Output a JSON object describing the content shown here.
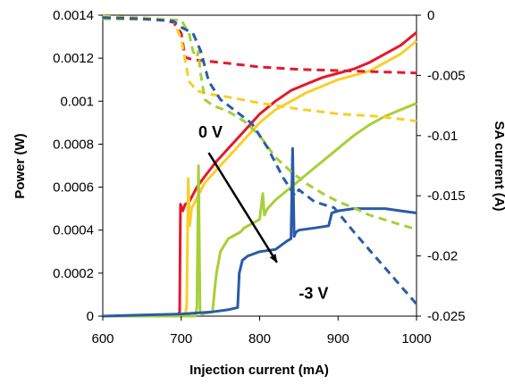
{
  "chart_data": {
    "type": "line",
    "title": "",
    "xlabel": "Injection current (mA)",
    "ylabel": "Power (W)",
    "y2label": "SA current (A)",
    "xlim": [
      600,
      1000
    ],
    "ylim": [
      0,
      0.0014
    ],
    "y2lim": [
      -0.025,
      0
    ],
    "grid": false,
    "legend": "none",
    "x_ticks": [
      "600",
      "700",
      "800",
      "900",
      "1000"
    ],
    "y_ticks": [
      "0",
      "0.0002",
      "0.0004",
      "0.0006",
      "0.0008",
      "0.001",
      "0.0012",
      "0.0014"
    ],
    "y2_ticks": [
      "0",
      "-0.005",
      "-0.01",
      "-0.015",
      "-0.02",
      "-0.025"
    ],
    "annotations": [
      {
        "text": "0 V",
        "x": 722,
        "y": 0.00083
      },
      {
        "text": "-3 V",
        "x": 850,
        "y": 8e-05
      }
    ],
    "arrow": {
      "from": [
        735,
        0.00076
      ],
      "to": [
        822,
        0.00025
      ]
    },
    "colors": {
      "red": "#e3192b",
      "orange": "#f8cf2a",
      "green": "#a8cf38",
      "blue": "#2a5ba8"
    },
    "series": [
      {
        "axis": "y",
        "style": "solid",
        "color": "#e3192b",
        "x": [
          600,
          695,
          698,
          699,
          702,
          705,
          710,
          720,
          730,
          745,
          760,
          780,
          800,
          820,
          840,
          860,
          880,
          900,
          920,
          940,
          960,
          980,
          1000
        ],
        "y": [
          0,
          0,
          2e-05,
          0.00052,
          0.00049,
          0.00052,
          0.00053,
          0.0006,
          0.00065,
          0.00072,
          0.00078,
          0.00086,
          0.00094,
          0.001,
          0.00105,
          0.00108,
          0.00111,
          0.00113,
          0.00115,
          0.00118,
          0.00122,
          0.00126,
          0.00132
        ]
      },
      {
        "axis": "y",
        "style": "solid",
        "color": "#f8cf2a",
        "x": [
          600,
          705,
          707,
          709,
          711,
          713,
          716,
          720,
          730,
          745,
          760,
          780,
          800,
          820,
          840,
          860,
          880,
          900,
          920,
          940,
          960,
          980,
          1000
        ],
        "y": [
          0,
          0,
          5e-05,
          0.00064,
          0.00042,
          0.0005,
          0.00052,
          0.00055,
          0.00062,
          0.00068,
          0.00074,
          0.00082,
          0.0009,
          0.00096,
          0.001,
          0.00104,
          0.00107,
          0.0011,
          0.00112,
          0.00114,
          0.00118,
          0.00122,
          0.00128
        ]
      },
      {
        "axis": "y",
        "style": "solid",
        "color": "#a8cf38",
        "x": [
          600,
          718,
          720,
          722,
          724,
          726,
          740,
          742,
          745,
          750,
          760,
          770,
          775,
          780,
          790,
          800,
          804,
          806,
          810,
          820,
          840,
          860,
          880,
          900,
          920,
          940,
          960,
          980,
          1000
        ],
        "y": [
          0,
          0,
          4e-05,
          0.0007,
          2e-05,
          1e-05,
          2e-05,
          0.0001,
          0.0002,
          0.0003,
          0.00036,
          0.00038,
          0.00039,
          0.00041,
          0.00043,
          0.00045,
          0.00057,
          0.00047,
          0.0005,
          0.00054,
          0.0006,
          0.00066,
          0.00072,
          0.00078,
          0.00084,
          0.00089,
          0.00093,
          0.00096,
          0.00099
        ]
      },
      {
        "axis": "y",
        "style": "solid",
        "color": "#2a5ba8",
        "x": [
          600,
          650,
          700,
          740,
          760,
          772,
          774,
          778,
          785,
          800,
          820,
          835,
          840,
          842,
          844,
          846,
          850,
          870,
          888,
          892,
          900,
          920,
          940,
          960,
          980,
          1000
        ],
        "y": [
          0,
          5e-06,
          1e-05,
          2e-05,
          3e-05,
          4e-05,
          0.0002,
          0.00026,
          0.00028,
          0.0003,
          0.00031,
          0.00035,
          0.00036,
          0.00078,
          0.00037,
          0.00039,
          0.0004,
          0.00041,
          0.00042,
          0.00048,
          0.00049,
          0.0005,
          0.0005,
          0.0005,
          0.00049,
          0.00048
        ]
      },
      {
        "axis": "y2",
        "style": "dashed",
        "color": "#e3192b",
        "x": [
          600,
          670,
          690,
          700,
          705,
          715,
          730,
          760,
          800,
          850,
          900,
          950,
          1000
        ],
        "y": [
          -0.0002,
          -0.0003,
          -0.0006,
          -0.0015,
          -0.0035,
          -0.0037,
          -0.0038,
          -0.004,
          -0.0043,
          -0.0045,
          -0.0046,
          -0.0047,
          -0.0048
        ]
      },
      {
        "axis": "y2",
        "style": "dashed",
        "color": "#f8cf2a",
        "x": [
          600,
          650,
          690,
          700,
          710,
          720,
          740,
          760,
          800,
          850,
          900,
          950,
          1000
        ],
        "y": [
          -0.0001,
          -0.0002,
          -0.0004,
          -0.002,
          -0.0055,
          -0.0063,
          -0.0066,
          -0.0068,
          -0.0073,
          -0.0078,
          -0.0082,
          -0.0084,
          -0.0088
        ]
      },
      {
        "axis": "y2",
        "style": "dashed",
        "color": "#a8cf38",
        "x": [
          600,
          700,
          710,
          715,
          720,
          722,
          724,
          730,
          740,
          760,
          780,
          800,
          820,
          840,
          860,
          880,
          900,
          920,
          940,
          960,
          980,
          1000
        ],
        "y": [
          -0.0003,
          -0.0004,
          -0.0015,
          -0.003,
          -0.0035,
          -0.003,
          -0.0045,
          -0.007,
          -0.0075,
          -0.008,
          -0.0088,
          -0.01,
          -0.0118,
          -0.013,
          -0.014,
          -0.0148,
          -0.0155,
          -0.016,
          -0.0166,
          -0.017,
          -0.0174,
          -0.0178
        ]
      },
      {
        "axis": "y2",
        "style": "dashed",
        "color": "#2a5ba8",
        "x": [
          600,
          650,
          690,
          700,
          715,
          725,
          735,
          750,
          770,
          790,
          810,
          830,
          845,
          850,
          870,
          895,
          920,
          940,
          960,
          980,
          1000
        ],
        "y": [
          -0.0002,
          -0.0003,
          -0.0005,
          -0.001,
          -0.0015,
          -0.003,
          -0.0055,
          -0.007,
          -0.008,
          -0.009,
          -0.011,
          -0.0135,
          -0.015,
          -0.0145,
          -0.0155,
          -0.016,
          -0.018,
          -0.0195,
          -0.021,
          -0.0225,
          -0.024
        ]
      }
    ]
  }
}
